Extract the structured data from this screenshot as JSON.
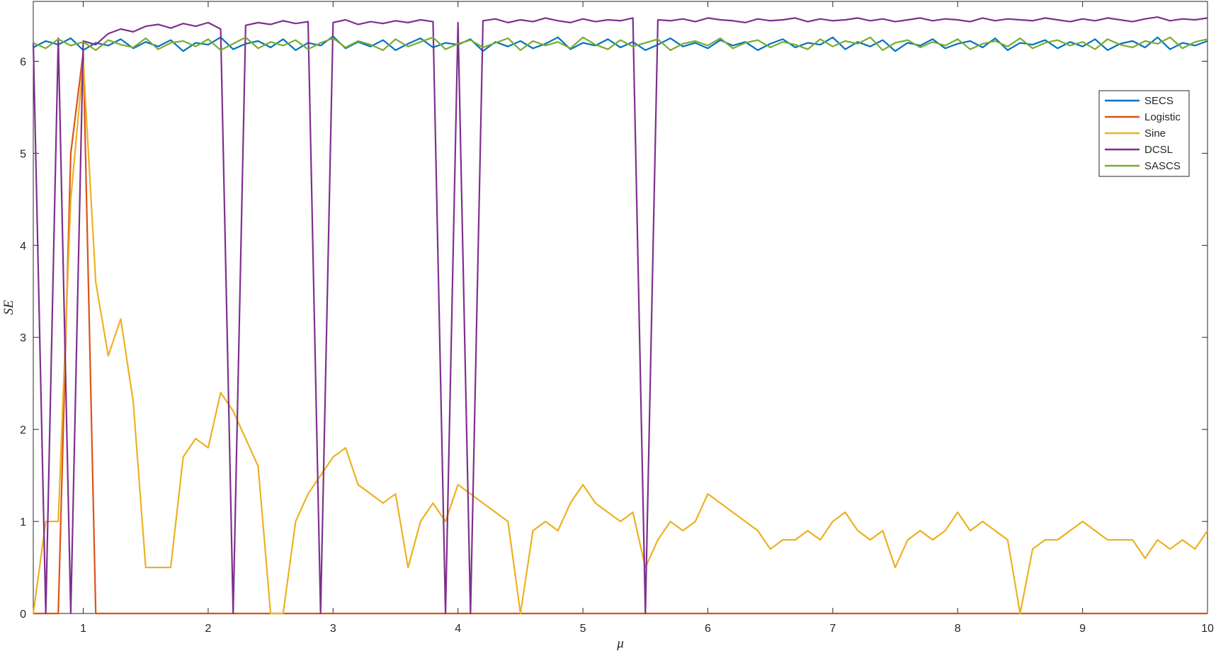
{
  "chart_data": {
    "type": "line",
    "xlabel": "μ",
    "ylabel": "SE",
    "xlim": [
      0.6,
      10
    ],
    "ylim": [
      0,
      6.65
    ],
    "xticks": [
      1,
      2,
      3,
      4,
      5,
      6,
      7,
      8,
      9,
      10
    ],
    "yticks": [
      0,
      1,
      2,
      3,
      4,
      5,
      6
    ],
    "legend": "upper right",
    "x": [
      0.6,
      0.7,
      0.8,
      0.9,
      1.0,
      1.1,
      1.2,
      1.3,
      1.4,
      1.5,
      1.6,
      1.7,
      1.8,
      1.9,
      2.0,
      2.1,
      2.2,
      2.3,
      2.4,
      2.5,
      2.6,
      2.7,
      2.8,
      2.9,
      3.0,
      3.1,
      3.2,
      3.3,
      3.4,
      3.5,
      3.6,
      3.7,
      3.8,
      3.9,
      4.0,
      4.1,
      4.2,
      4.3,
      4.4,
      4.5,
      4.6,
      4.7,
      4.8,
      4.9,
      5.0,
      5.1,
      5.2,
      5.3,
      5.4,
      5.5,
      5.6,
      5.7,
      5.8,
      5.9,
      6.0,
      6.1,
      6.2,
      6.3,
      6.4,
      6.5,
      6.6,
      6.7,
      6.8,
      6.9,
      7.0,
      7.1,
      7.2,
      7.3,
      7.4,
      7.5,
      7.6,
      7.7,
      7.8,
      7.9,
      8.0,
      8.1,
      8.2,
      8.3,
      8.4,
      8.5,
      8.6,
      8.7,
      8.8,
      8.9,
      9.0,
      9.1,
      9.2,
      9.3,
      9.4,
      9.5,
      9.6,
      9.7,
      9.8,
      9.9,
      10.0
    ],
    "series": [
      {
        "name": "SECS",
        "color": "#0072bd",
        "values": [
          6.15,
          6.22,
          6.18,
          6.25,
          6.12,
          6.2,
          6.17,
          6.24,
          6.14,
          6.21,
          6.16,
          6.23,
          6.11,
          6.2,
          6.18,
          6.26,
          6.13,
          6.19,
          6.22,
          6.15,
          6.24,
          6.12,
          6.2,
          6.17,
          6.27,
          6.14,
          6.21,
          6.16,
          6.23,
          6.12,
          6.19,
          6.25,
          6.15,
          6.2,
          6.18,
          6.24,
          6.11,
          6.21,
          6.16,
          6.22,
          6.14,
          6.19,
          6.26,
          6.13,
          6.2,
          6.17,
          6.24,
          6.15,
          6.21,
          6.12,
          6.18,
          6.25,
          6.16,
          6.2,
          6.14,
          6.23,
          6.17,
          6.21,
          6.12,
          6.19,
          6.24,
          6.15,
          6.2,
          6.18,
          6.26,
          6.13,
          6.21,
          6.16,
          6.23,
          6.11,
          6.2,
          6.17,
          6.24,
          6.14,
          6.19,
          6.22,
          6.15,
          6.25,
          6.12,
          6.2,
          6.18,
          6.23,
          6.14,
          6.21,
          6.16,
          6.24,
          6.12,
          6.19,
          6.22,
          6.15,
          6.26,
          6.13,
          6.2,
          6.17,
          6.22
        ]
      },
      {
        "name": "Logistic",
        "color": "#d95319",
        "values": [
          0,
          0,
          0,
          5,
          6.1,
          0,
          0,
          0,
          0,
          0,
          0,
          0,
          0,
          0,
          0,
          0,
          0,
          0,
          0,
          0,
          0,
          0,
          0,
          0,
          0,
          0,
          0,
          0,
          0,
          0,
          0,
          0,
          0,
          0,
          0,
          0,
          0,
          0,
          0,
          0,
          0,
          0,
          0,
          0,
          0,
          0,
          0,
          0,
          0,
          0,
          0,
          0,
          0,
          0,
          0,
          0,
          0,
          0,
          0,
          0,
          0,
          0,
          0,
          0,
          0,
          0,
          0,
          0,
          0,
          0,
          0,
          0,
          0,
          0,
          0,
          0,
          0,
          0,
          0,
          0,
          0,
          0,
          0,
          0,
          0,
          0,
          0,
          0,
          0,
          0,
          0,
          0,
          0,
          0,
          0
        ]
      },
      {
        "name": "Sine",
        "color": "#edb120",
        "values": [
          0,
          1,
          1,
          4.5,
          6,
          3.6,
          2.8,
          3.2,
          2.3,
          0.5,
          0.5,
          0.5,
          1.7,
          1.9,
          1.8,
          2.4,
          2.2,
          1.9,
          1.6,
          0,
          0,
          1,
          1.3,
          1.5,
          1.7,
          1.8,
          1.4,
          1.3,
          1.2,
          1.3,
          0.5,
          1,
          1.2,
          1,
          1.4,
          1.3,
          1.2,
          1.1,
          1,
          0,
          0.9,
          1,
          0.9,
          1.2,
          1.4,
          1.2,
          1.1,
          1,
          1.1,
          0.5,
          0.8,
          1,
          0.9,
          1,
          1.3,
          1.2,
          1.1,
          1,
          0.9,
          0.7,
          0.8,
          0.8,
          0.9,
          0.8,
          1,
          1.1,
          0.9,
          0.8,
          0.9,
          0.5,
          0.8,
          0.9,
          0.8,
          0.9,
          1.1,
          0.9,
          1,
          0.9,
          0.8,
          0,
          0.7,
          0.8,
          0.8,
          0.9,
          1,
          0.9,
          0.8,
          0.8,
          0.8,
          0.6,
          0.8,
          0.7,
          0.8,
          0.7,
          0.9
        ]
      },
      {
        "name": "DCSL",
        "color": "#7e2f8e",
        "values": [
          6.2,
          0,
          6.25,
          0,
          6.22,
          6.18,
          6.3,
          6.35,
          6.32,
          6.38,
          6.4,
          6.36,
          6.41,
          6.38,
          6.42,
          6.35,
          0,
          6.39,
          6.42,
          6.4,
          6.44,
          6.41,
          6.43,
          0,
          6.42,
          6.45,
          6.4,
          6.43,
          6.41,
          6.44,
          6.42,
          6.45,
          6.43,
          0,
          6.42,
          0,
          6.44,
          6.46,
          6.42,
          6.45,
          6.43,
          6.47,
          6.44,
          6.42,
          6.46,
          6.43,
          6.45,
          6.44,
          6.47,
          0,
          6.45,
          6.44,
          6.46,
          6.43,
          6.47,
          6.45,
          6.44,
          6.42,
          6.46,
          6.44,
          6.45,
          6.47,
          6.43,
          6.46,
          6.44,
          6.45,
          6.47,
          6.44,
          6.46,
          6.43,
          6.45,
          6.47,
          6.44,
          6.46,
          6.45,
          6.43,
          6.47,
          6.44,
          6.46,
          6.45,
          6.44,
          6.47,
          6.45,
          6.43,
          6.46,
          6.44,
          6.47,
          6.45,
          6.43,
          6.46,
          6.48,
          6.44,
          6.46,
          6.45,
          6.47
        ]
      },
      {
        "name": "SASCS",
        "color": "#77ac30",
        "values": [
          6.2,
          6.14,
          6.24,
          6.17,
          6.21,
          6.12,
          6.23,
          6.18,
          6.15,
          6.25,
          6.13,
          6.2,
          6.22,
          6.16,
          6.24,
          6.12,
          6.19,
          6.26,
          6.14,
          6.21,
          6.17,
          6.23,
          6.13,
          6.2,
          6.25,
          6.15,
          6.22,
          6.18,
          6.12,
          6.24,
          6.16,
          6.21,
          6.26,
          6.13,
          6.19,
          6.23,
          6.15,
          6.2,
          6.25,
          6.12,
          6.22,
          6.17,
          6.21,
          6.14,
          6.26,
          6.18,
          6.13,
          6.23,
          6.16,
          6.2,
          6.24,
          6.12,
          6.19,
          6.22,
          6.17,
          6.25,
          6.14,
          6.2,
          6.23,
          6.15,
          6.21,
          6.18,
          6.13,
          6.24,
          6.16,
          6.22,
          6.19,
          6.26,
          6.12,
          6.2,
          6.23,
          6.15,
          6.21,
          6.17,
          6.24,
          6.13,
          6.19,
          6.22,
          6.16,
          6.25,
          6.14,
          6.2,
          6.23,
          6.17,
          6.21,
          6.13,
          6.24,
          6.18,
          6.15,
          6.22,
          6.19,
          6.26,
          6.14,
          6.21,
          6.24
        ]
      }
    ]
  }
}
